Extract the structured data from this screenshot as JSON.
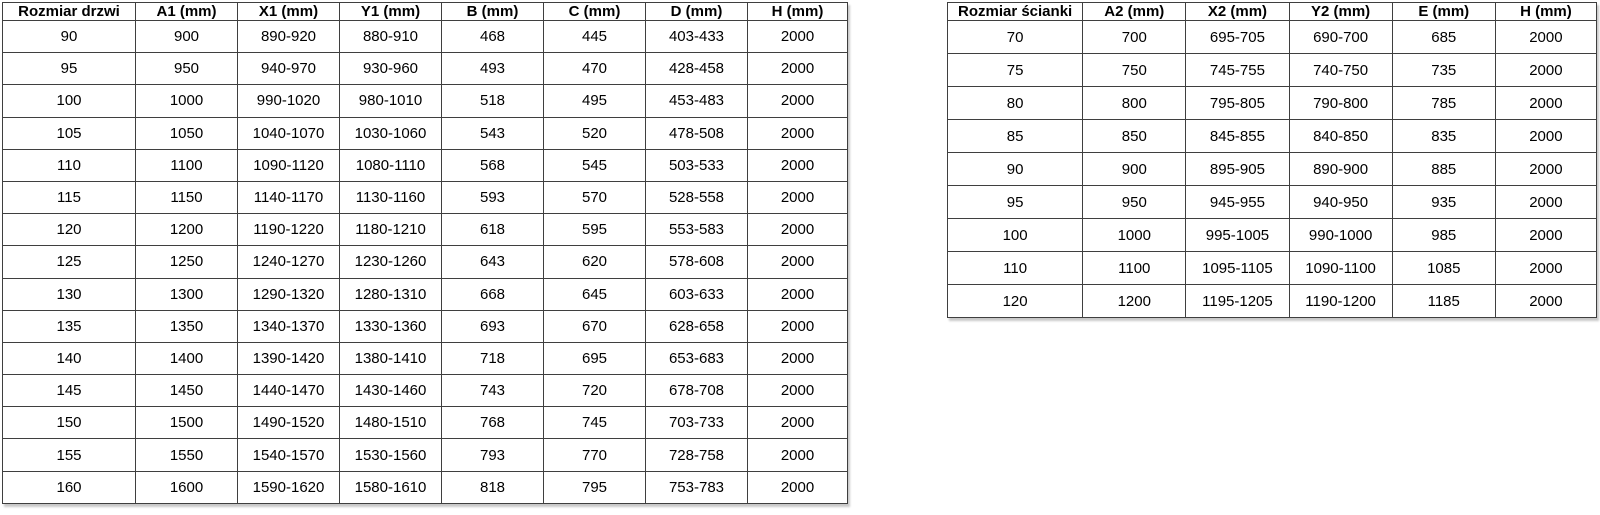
{
  "page": {
    "background_color": "#ffffff",
    "border_color": "#3f3f3f",
    "text_color": "#000000"
  },
  "tables": [
    {
      "name": "door-size-table",
      "headers": [
        "Rozmiar drzwi",
        "A1 (mm)",
        "X1 (mm)",
        "Y1 (mm)",
        "B (mm)",
        "C (mm)",
        "D (mm)",
        "H (mm)"
      ],
      "rows": [
        [
          "90",
          "900",
          "890-920",
          "880-910",
          "468",
          "445",
          "403-433",
          "2000"
        ],
        [
          "95",
          "950",
          "940-970",
          "930-960",
          "493",
          "470",
          "428-458",
          "2000"
        ],
        [
          "100",
          "1000",
          "990-1020",
          "980-1010",
          "518",
          "495",
          "453-483",
          "2000"
        ],
        [
          "105",
          "1050",
          "1040-1070",
          "1030-1060",
          "543",
          "520",
          "478-508",
          "2000"
        ],
        [
          "110",
          "1100",
          "1090-1120",
          "1080-1110",
          "568",
          "545",
          "503-533",
          "2000"
        ],
        [
          "115",
          "1150",
          "1140-1170",
          "1130-1160",
          "593",
          "570",
          "528-558",
          "2000"
        ],
        [
          "120",
          "1200",
          "1190-1220",
          "1180-1210",
          "618",
          "595",
          "553-583",
          "2000"
        ],
        [
          "125",
          "1250",
          "1240-1270",
          "1230-1260",
          "643",
          "620",
          "578-608",
          "2000"
        ],
        [
          "130",
          "1300",
          "1290-1320",
          "1280-1310",
          "668",
          "645",
          "603-633",
          "2000"
        ],
        [
          "135",
          "1350",
          "1340-1370",
          "1330-1360",
          "693",
          "670",
          "628-658",
          "2000"
        ],
        [
          "140",
          "1400",
          "1390-1420",
          "1380-1410",
          "718",
          "695",
          "653-683",
          "2000"
        ],
        [
          "145",
          "1450",
          "1440-1470",
          "1430-1460",
          "743",
          "720",
          "678-708",
          "2000"
        ],
        [
          "150",
          "1500",
          "1490-1520",
          "1480-1510",
          "768",
          "745",
          "703-733",
          "2000"
        ],
        [
          "155",
          "1550",
          "1540-1570",
          "1530-1560",
          "793",
          "770",
          "728-758",
          "2000"
        ],
        [
          "160",
          "1600",
          "1590-1620",
          "1580-1610",
          "818",
          "795",
          "753-783",
          "2000"
        ]
      ]
    },
    {
      "name": "wall-size-table",
      "headers": [
        "Rozmiar ścianki",
        "A2 (mm)",
        "X2 (mm)",
        "Y2 (mm)",
        "E (mm)",
        "H (mm)"
      ],
      "rows": [
        [
          "70",
          "700",
          "695-705",
          "690-700",
          "685",
          "2000"
        ],
        [
          "75",
          "750",
          "745-755",
          "740-750",
          "735",
          "2000"
        ],
        [
          "80",
          "800",
          "795-805",
          "790-800",
          "785",
          "2000"
        ],
        [
          "85",
          "850",
          "845-855",
          "840-850",
          "835",
          "2000"
        ],
        [
          "90",
          "900",
          "895-905",
          "890-900",
          "885",
          "2000"
        ],
        [
          "95",
          "950",
          "945-955",
          "940-950",
          "935",
          "2000"
        ],
        [
          "100",
          "1000",
          "995-1005",
          "990-1000",
          "985",
          "2000"
        ],
        [
          "110",
          "1100",
          "1095-1105",
          "1090-1100",
          "1085",
          "2000"
        ],
        [
          "120",
          "1200",
          "1195-1205",
          "1190-1200",
          "1185",
          "2000"
        ]
      ]
    }
  ]
}
